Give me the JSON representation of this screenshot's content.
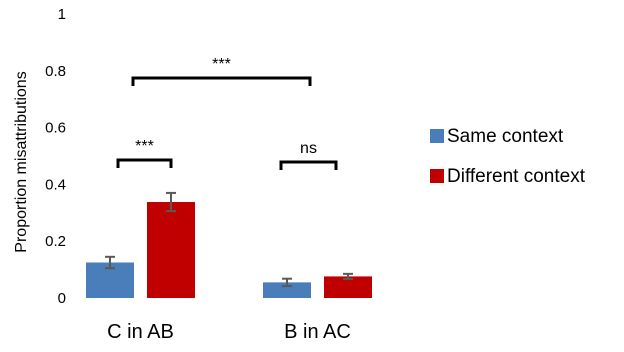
{
  "chart_data": {
    "type": "bar",
    "title": "",
    "xlabel": "",
    "ylabel": "Proportion misattributions",
    "ylim": [
      0,
      1
    ],
    "yticks": [
      0,
      0.2,
      0.4,
      0.6,
      0.8,
      1
    ],
    "grid": false,
    "legend_position": "right",
    "categories": [
      "C in AB",
      "B in AC"
    ],
    "series": [
      {
        "name": "Same context",
        "color": "#4a7ebb",
        "values": [
          0.125,
          0.055
        ],
        "errors": [
          0.02,
          0.013
        ]
      },
      {
        "name": "Different context",
        "color": "#c00000",
        "values": [
          0.338,
          0.076
        ],
        "errors": [
          0.032,
          0.009
        ]
      }
    ],
    "annotations": [
      {
        "label": "***",
        "between": "C in AB: Same context vs Different context"
      },
      {
        "label": "ns",
        "between": "B in AC: Same context vs Different context"
      },
      {
        "label": "***",
        "between": "C in AB vs B in AC"
      }
    ]
  }
}
